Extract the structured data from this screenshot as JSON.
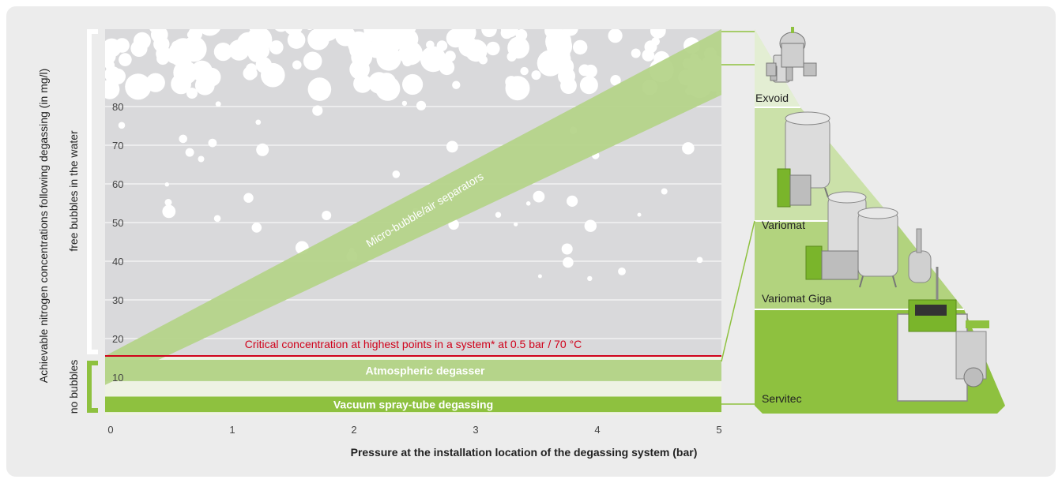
{
  "chart_data": {
    "type": "area",
    "xlabel": "Pressure at the installation location of the degassing system (bar)",
    "ylabel": "Achievable nitrogen concentrations following degassing (in mg/l)",
    "xlim": [
      0,
      5
    ],
    "ylim": [
      0,
      100
    ],
    "x_ticks": [
      "0",
      "1",
      "2",
      "3",
      "4",
      "5"
    ],
    "y_ticks": [
      "10",
      "20",
      "30",
      "40",
      "50",
      "60",
      "70",
      "80"
    ],
    "grid": true,
    "series": [
      {
        "name": "Micro-bubble/air separators",
        "x": [
          0,
          5
        ],
        "y_lower": [
          8,
          83
        ],
        "y_upper": [
          15.5,
          100
        ]
      },
      {
        "name": "Atmospheric degasser",
        "x": [
          0,
          5
        ],
        "y_lower": [
          9,
          9
        ],
        "y_upper": [
          14.5,
          14.5
        ]
      },
      {
        "name": "Vacuum spray-tube degassing",
        "x": [
          0,
          5
        ],
        "y_lower": [
          1,
          1
        ],
        "y_upper": [
          5,
          5
        ]
      }
    ],
    "critical_line": {
      "label": "Critical concentration at highest points in a system* at 0.5 bar / 70 °C",
      "y": 15.5
    },
    "regions": {
      "upper": "free bubbles in the water",
      "lower": "no bubbles"
    },
    "devices": [
      "Exvoid",
      "Variomat",
      "Variomat Giga",
      "Servitec"
    ]
  },
  "colors": {
    "plot_bg": "#d9d9db",
    "band_light": "#b5d48a",
    "band_dark": "#8ec13f",
    "critical": "#d0021b",
    "bubble": "#ffffff"
  }
}
